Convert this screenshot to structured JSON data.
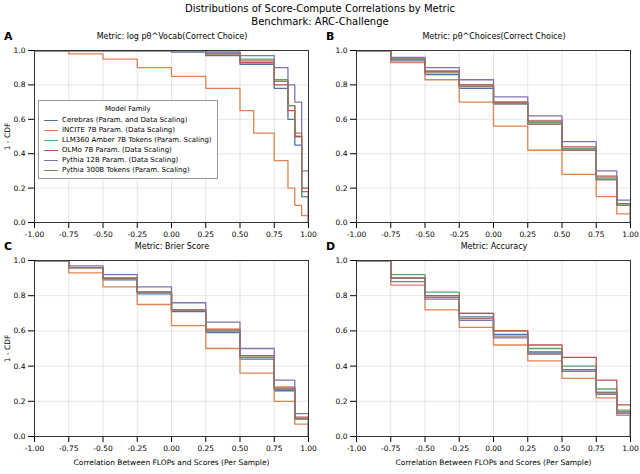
{
  "title": "Distributions of Score-Compute Correlations by Metric",
  "subtitle": "Benchmark: ARC-Challenge",
  "chart_data": [
    {
      "type": "line",
      "panel": "A",
      "title": "Metric: log pθ^Vocab(Correct Choice)",
      "ylabel": "1 - CDF",
      "xlim": [
        -1,
        1
      ],
      "ylim": [
        0,
        1
      ],
      "xticks": [
        {
          "value": -1,
          "label": "-1.00"
        },
        -0.75,
        {
          "value": -0.5,
          "label": "-0.50"
        },
        -0.25,
        {
          "value": 0,
          "label": "0.00"
        },
        0.25,
        {
          "value": 0.5,
          "label": "0.50"
        },
        0.75,
        {
          "value": 1,
          "label": "1.00"
        }
      ],
      "yticks": [
        {
          "value": 0,
          "label": "0.0"
        },
        0.2,
        0.4,
        0.6,
        0.8,
        {
          "value": 1,
          "label": "1.0"
        }
      ],
      "grid": true,
      "line_style": "step",
      "legend": "left",
      "legend_title": "Model Family",
      "series": [
        {
          "name": "Cerebras (Param. and Data Scaling)",
          "color": "#4c72b0",
          "x": [
            -1,
            0,
            0.25,
            0.5,
            0.75,
            0.85,
            0.9,
            0.95,
            1
          ],
          "values": [
            1,
            0.99,
            0.97,
            0.92,
            0.78,
            0.6,
            0.45,
            0.15,
            0
          ]
        },
        {
          "name": "INCITE 7B Param. (Data Scaling)",
          "color": "#dd8452",
          "x": [
            -1,
            -0.75,
            -0.5,
            -0.25,
            0,
            0.25,
            0.5,
            0.6,
            0.75,
            0.85,
            0.9,
            0.95,
            1
          ],
          "values": [
            1,
            0.98,
            0.95,
            0.9,
            0.85,
            0.78,
            0.65,
            0.52,
            0.36,
            0.2,
            0.1,
            0.04,
            0
          ]
        },
        {
          "name": "LLM360 Amber 7B Tokens (Param. Scaling)",
          "color": "#55a868",
          "x": [
            -1,
            0,
            0.25,
            0.5,
            0.75,
            0.85,
            0.9,
            0.95,
            1
          ],
          "values": [
            1,
            1,
            0.99,
            0.95,
            0.83,
            0.68,
            0.5,
            0.15,
            0
          ]
        },
        {
          "name": "OLMo 7B Param. (Data Scaling)",
          "color": "#c44e52",
          "x": [
            -1,
            0,
            0.25,
            0.5,
            0.75,
            0.85,
            0.9,
            0.95,
            1
          ],
          "values": [
            1,
            1,
            0.98,
            0.93,
            0.8,
            0.65,
            0.5,
            0.2,
            0
          ]
        },
        {
          "name": "Pythia 12B Param. (Data Scaling)",
          "color": "#8172b3",
          "x": [
            -1,
            0,
            0.25,
            0.5,
            0.75,
            0.85,
            0.9,
            0.95,
            1
          ],
          "values": [
            1,
            1,
            0.99,
            0.97,
            0.9,
            0.8,
            0.7,
            0.3,
            0
          ]
        },
        {
          "name": "Pythia 300B Tokens (Param. Scaling)",
          "color": "#937860",
          "x": [
            -1,
            0,
            0.25,
            0.5,
            0.75,
            0.85,
            0.9,
            0.95,
            1
          ],
          "values": [
            1,
            1,
            0.98,
            0.94,
            0.82,
            0.68,
            0.52,
            0.18,
            0
          ]
        }
      ]
    },
    {
      "type": "line",
      "panel": "B",
      "title": "Metric: pθ^Choices(Correct Choice)",
      "xlim": [
        -1,
        1
      ],
      "ylim": [
        0,
        1
      ],
      "xticks": [
        {
          "value": -1,
          "label": "-1.00"
        },
        -0.75,
        {
          "value": -0.5,
          "label": "-0.50"
        },
        -0.25,
        {
          "value": 0,
          "label": "0.00"
        },
        0.25,
        {
          "value": 0.5,
          "label": "0.50"
        },
        0.75,
        {
          "value": 1,
          "label": "1.00"
        }
      ],
      "yticks": [
        {
          "value": 0,
          "label": "0.0"
        },
        0.2,
        0.4,
        0.6,
        0.8,
        {
          "value": 1,
          "label": "1.0"
        }
      ],
      "grid": true,
      "line_style": "step",
      "series": [
        {
          "name": "Cerebras (Param. and Data Scaling)",
          "color": "#4c72b0",
          "x": [
            -1,
            -0.75,
            -0.5,
            -0.25,
            0,
            0.25,
            0.5,
            0.75,
            0.9,
            1
          ],
          "values": [
            1,
            0.94,
            0.86,
            0.78,
            0.69,
            0.57,
            0.42,
            0.25,
            0.1,
            0
          ]
        },
        {
          "name": "INCITE 7B Param. (Data Scaling)",
          "color": "#dd8452",
          "x": [
            -1,
            -0.75,
            -0.5,
            -0.25,
            0,
            0.25,
            0.5,
            0.75,
            0.9,
            1
          ],
          "values": [
            1,
            0.93,
            0.83,
            0.7,
            0.56,
            0.42,
            0.28,
            0.15,
            0.05,
            0
          ]
        },
        {
          "name": "LLM360 Amber 7B Tokens (Param. Scaling)",
          "color": "#55a868",
          "x": [
            -1,
            -0.75,
            -0.5,
            -0.25,
            0,
            0.25,
            0.5,
            0.75,
            0.9,
            1
          ],
          "values": [
            1,
            0.95,
            0.88,
            0.8,
            0.7,
            0.58,
            0.43,
            0.26,
            0.1,
            0
          ]
        },
        {
          "name": "OLMo 7B Param. (Data Scaling)",
          "color": "#c44e52",
          "x": [
            -1,
            -0.75,
            -0.5,
            -0.25,
            0,
            0.25,
            0.5,
            0.75,
            0.9,
            1
          ],
          "values": [
            1,
            0.95,
            0.88,
            0.8,
            0.7,
            0.59,
            0.44,
            0.27,
            0.11,
            0
          ]
        },
        {
          "name": "Pythia 12B Param. (Data Scaling)",
          "color": "#8172b3",
          "x": [
            -1,
            -0.75,
            -0.5,
            -0.25,
            0,
            0.25,
            0.5,
            0.75,
            0.9,
            1
          ],
          "values": [
            1,
            0.96,
            0.9,
            0.83,
            0.73,
            0.62,
            0.47,
            0.3,
            0.13,
            0
          ]
        },
        {
          "name": "Pythia 300B Tokens (Param. Scaling)",
          "color": "#937860",
          "x": [
            -1,
            -0.75,
            -0.5,
            -0.25,
            0,
            0.25,
            0.5,
            0.75,
            0.9,
            1
          ],
          "values": [
            1,
            0.95,
            0.87,
            0.79,
            0.69,
            0.57,
            0.42,
            0.25,
            0.1,
            0
          ]
        }
      ]
    },
    {
      "type": "line",
      "panel": "C",
      "title": "Metric: Brier Score",
      "xlabel": "Correlation Between FLOPs and Scores (Per Sample)",
      "ylabel": "1 - CDF",
      "xlim": [
        -1,
        1
      ],
      "ylim": [
        0,
        1
      ],
      "xticks": [
        {
          "value": -1,
          "label": "-1.00"
        },
        -0.75,
        {
          "value": -0.5,
          "label": "-0.50"
        },
        -0.25,
        {
          "value": 0,
          "label": "0.00"
        },
        0.25,
        {
          "value": 0.5,
          "label": "0.50"
        },
        0.75,
        {
          "value": 1,
          "label": "1.00"
        }
      ],
      "yticks": [
        {
          "value": 0,
          "label": "0.0"
        },
        0.2,
        0.4,
        0.6,
        0.8,
        {
          "value": 1,
          "label": "1.0"
        }
      ],
      "grid": true,
      "line_style": "step",
      "series": [
        {
          "name": "Cerebras (Param. and Data Scaling)",
          "color": "#4c72b0",
          "x": [
            -1,
            -0.75,
            -0.5,
            -0.25,
            0,
            0.25,
            0.5,
            0.75,
            0.9,
            1
          ],
          "values": [
            1,
            0.96,
            0.89,
            0.81,
            0.71,
            0.59,
            0.44,
            0.26,
            0.1,
            0
          ]
        },
        {
          "name": "INCITE 7B Param. (Data Scaling)",
          "color": "#dd8452",
          "x": [
            -1,
            -0.75,
            -0.5,
            -0.25,
            0,
            0.25,
            0.5,
            0.75,
            0.9,
            1
          ],
          "values": [
            1,
            0.93,
            0.85,
            0.75,
            0.63,
            0.5,
            0.36,
            0.2,
            0.07,
            0
          ]
        },
        {
          "name": "LLM360 Amber 7B Tokens (Param. Scaling)",
          "color": "#55a868",
          "x": [
            -1,
            -0.75,
            -0.5,
            -0.25,
            0,
            0.25,
            0.5,
            0.75,
            0.9,
            1
          ],
          "values": [
            1,
            0.96,
            0.9,
            0.82,
            0.72,
            0.6,
            0.45,
            0.27,
            0.1,
            0
          ]
        },
        {
          "name": "OLMo 7B Param. (Data Scaling)",
          "color": "#c44e52",
          "x": [
            -1,
            -0.75,
            -0.5,
            -0.25,
            0,
            0.25,
            0.5,
            0.75,
            0.9,
            1
          ],
          "values": [
            1,
            0.96,
            0.9,
            0.82,
            0.72,
            0.61,
            0.46,
            0.28,
            0.11,
            0
          ]
        },
        {
          "name": "Pythia 12B Param. (Data Scaling)",
          "color": "#8172b3",
          "x": [
            -1,
            -0.75,
            -0.5,
            -0.25,
            0,
            0.25,
            0.5,
            0.75,
            0.9,
            1
          ],
          "values": [
            1,
            0.97,
            0.92,
            0.85,
            0.76,
            0.65,
            0.5,
            0.32,
            0.13,
            0
          ]
        },
        {
          "name": "Pythia 300B Tokens (Param. Scaling)",
          "color": "#937860",
          "x": [
            -1,
            -0.75,
            -0.5,
            -0.25,
            0,
            0.25,
            0.5,
            0.75,
            0.9,
            1
          ],
          "values": [
            1,
            0.96,
            0.9,
            0.82,
            0.72,
            0.6,
            0.45,
            0.27,
            0.1,
            0
          ]
        }
      ]
    },
    {
      "type": "line",
      "panel": "D",
      "title": "Metric: Accuracy",
      "xlabel": "Correlation Between FLOPs and Scores (Per Sample)",
      "xlim": [
        -1,
        1
      ],
      "ylim": [
        0,
        1
      ],
      "xticks": [
        {
          "value": -1,
          "label": "-1.00"
        },
        -0.75,
        {
          "value": -0.5,
          "label": "-0.50"
        },
        -0.25,
        {
          "value": 0,
          "label": "0.00"
        },
        0.25,
        {
          "value": 0.5,
          "label": "0.50"
        },
        0.75,
        {
          "value": 1,
          "label": "1.00"
        }
      ],
      "yticks": [
        {
          "value": 0,
          "label": "0.0"
        },
        0.2,
        0.4,
        0.6,
        0.8,
        {
          "value": 1,
          "label": "1.0"
        }
      ],
      "grid": true,
      "line_style": "step",
      "series": [
        {
          "name": "Cerebras (Param. and Data Scaling)",
          "color": "#4c72b0",
          "x": [
            -1,
            -0.75,
            -0.5,
            -0.25,
            0,
            0.25,
            0.5,
            0.75,
            0.9,
            1
          ],
          "values": [
            1,
            0.9,
            0.8,
            0.68,
            0.58,
            0.48,
            0.38,
            0.25,
            0.14,
            0
          ]
        },
        {
          "name": "INCITE 7B Param. (Data Scaling)",
          "color": "#dd8452",
          "x": [
            -1,
            -0.75,
            -0.5,
            -0.25,
            0,
            0.25,
            0.5,
            0.75,
            0.9,
            1
          ],
          "values": [
            1,
            0.86,
            0.72,
            0.62,
            0.52,
            0.43,
            0.33,
            0.22,
            0.12,
            0
          ]
        },
        {
          "name": "LLM360 Amber 7B Tokens (Param. Scaling)",
          "color": "#55a868",
          "x": [
            -1,
            -0.75,
            -0.5,
            -0.25,
            0,
            0.25,
            0.5,
            0.75,
            0.9,
            1
          ],
          "values": [
            1,
            0.92,
            0.82,
            0.7,
            0.6,
            0.5,
            0.4,
            0.27,
            0.15,
            0
          ]
        },
        {
          "name": "OLMo 7B Param. (Data Scaling)",
          "color": "#c44e52",
          "x": [
            -1,
            -0.75,
            -0.5,
            -0.25,
            0,
            0.25,
            0.5,
            0.75,
            0.9,
            1
          ],
          "values": [
            1,
            0.9,
            0.8,
            0.7,
            0.6,
            0.52,
            0.45,
            0.32,
            0.18,
            0
          ]
        },
        {
          "name": "Pythia 12B Param. (Data Scaling)",
          "color": "#8172b3",
          "x": [
            -1,
            -0.75,
            -0.5,
            -0.25,
            0,
            0.25,
            0.5,
            0.75,
            0.9,
            1
          ],
          "values": [
            1,
            0.88,
            0.78,
            0.66,
            0.56,
            0.47,
            0.37,
            0.24,
            0.13,
            0
          ]
        },
        {
          "name": "Pythia 300B Tokens (Param. Scaling)",
          "color": "#937860",
          "x": [
            -1,
            -0.75,
            -0.5,
            -0.25,
            0,
            0.25,
            0.5,
            0.75,
            0.9,
            1
          ],
          "values": [
            1,
            0.9,
            0.79,
            0.67,
            0.57,
            0.47,
            0.37,
            0.25,
            0.14,
            0
          ]
        }
      ]
    }
  ]
}
